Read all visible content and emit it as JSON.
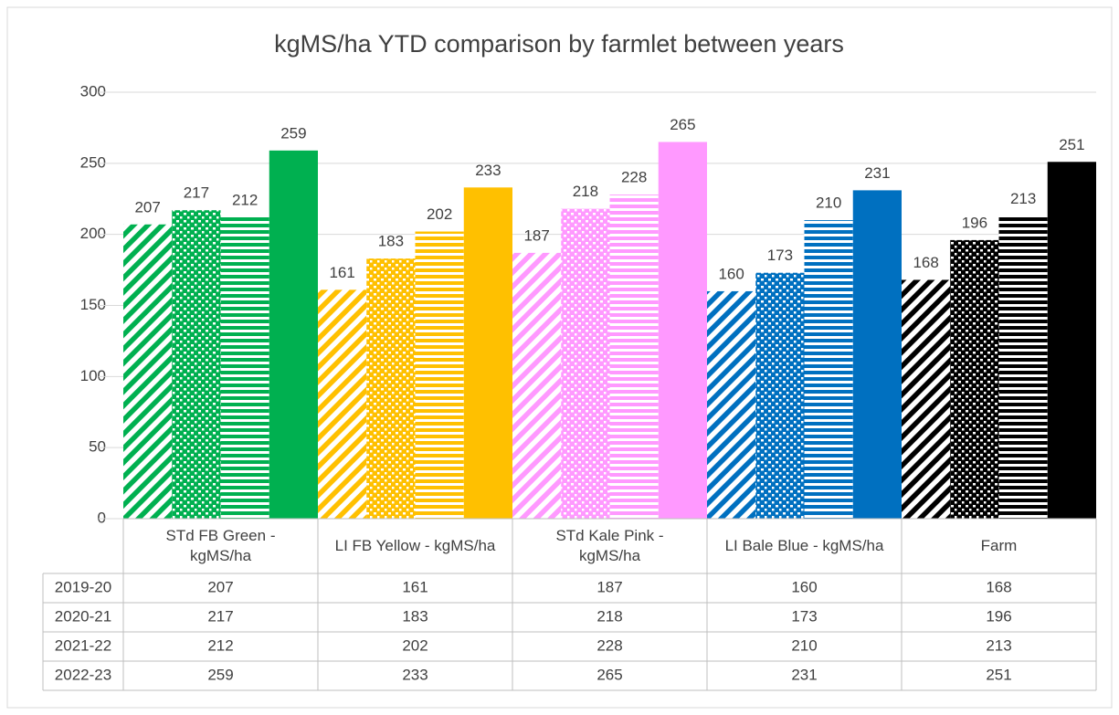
{
  "chart_data": {
    "type": "bar",
    "title": "kgMS/ha YTD comparison by farmlet between years",
    "categories": [
      "STd FB Green - kgMS/ha",
      "LI FB Yellow - kgMS/ha",
      "STd Kale Pink - kgMS/ha",
      "LI Bale Blue - kgMS/ha",
      "Farm"
    ],
    "category_colors": [
      "#00b050",
      "#ffc000",
      "#ff99ff",
      "#0070c0",
      "#000000"
    ],
    "series": [
      {
        "name": "2019-20",
        "pattern": "diagonal",
        "values": [
          207,
          161,
          187,
          160,
          168
        ]
      },
      {
        "name": "2020-21",
        "pattern": "dots",
        "values": [
          217,
          183,
          218,
          173,
          196
        ]
      },
      {
        "name": "2021-22",
        "pattern": "horizontal",
        "values": [
          212,
          202,
          228,
          210,
          213
        ]
      },
      {
        "name": "2022-23",
        "pattern": "solid",
        "values": [
          259,
          233,
          265,
          231,
          251
        ]
      }
    ],
    "ylim": [
      0,
      300
    ],
    "yticks": [
      0,
      50,
      100,
      150,
      200,
      250,
      300
    ],
    "grid": true,
    "data_table": true
  }
}
